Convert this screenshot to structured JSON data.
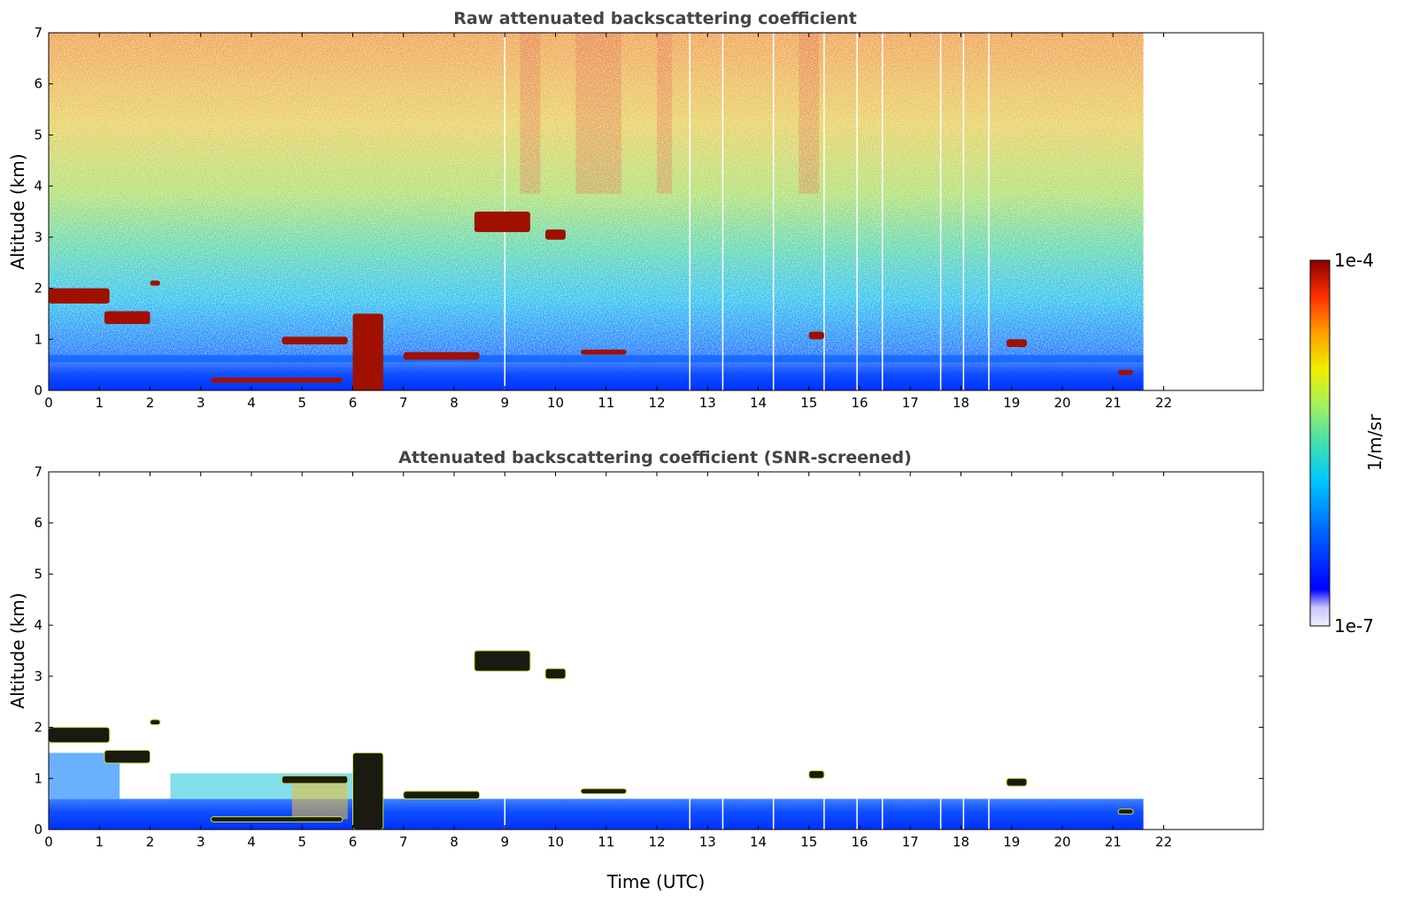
{
  "chart_data": [
    {
      "type": "heatmap",
      "title": "Raw attenuated backscattering coefficient",
      "xlabel": "",
      "ylabel": "Altitude (km)",
      "xlim": [
        0,
        24
      ],
      "ylim": [
        0,
        7
      ],
      "x_ticks": [
        "0",
        "1",
        "2",
        "3",
        "4",
        "5",
        "6",
        "7",
        "8",
        "9",
        "10",
        "11",
        "12",
        "13",
        "14",
        "15",
        "16",
        "17",
        "18",
        "19",
        "20",
        "21",
        "22"
      ],
      "y_ticks": [
        "0",
        "1",
        "2",
        "3",
        "4",
        "5",
        "6",
        "7"
      ],
      "data_extent_hours": [
        0,
        21.6
      ],
      "data_gaps_hours": [
        9.0,
        12.65,
        13.3,
        14.3,
        15.3,
        15.95,
        16.45,
        17.6,
        18.05,
        18.55
      ],
      "features": [
        {
          "name": "surface aerosol layer",
          "t": [
            0,
            21.6
          ],
          "alt_km": [
            0,
            0.5
          ],
          "level": "low"
        },
        {
          "name": "residual layer cloud",
          "t": [
            0,
            1.2
          ],
          "alt_km": [
            1.7,
            2.0
          ],
          "level": "high"
        },
        {
          "name": "cloud",
          "t": [
            2.0,
            2.2
          ],
          "alt_km": [
            2.05,
            2.15
          ],
          "level": "high"
        },
        {
          "name": "cloud",
          "t": [
            1.1,
            2.0
          ],
          "alt_km": [
            1.3,
            1.55
          ],
          "level": "high"
        },
        {
          "name": "cloud",
          "t": [
            4.6,
            5.9
          ],
          "alt_km": [
            0.9,
            1.05
          ],
          "level": "high"
        },
        {
          "name": "cloud",
          "t": [
            3.2,
            5.8
          ],
          "alt_km": [
            0.15,
            0.25
          ],
          "level": "high"
        },
        {
          "name": "cloud",
          "t": [
            6.0,
            6.6
          ],
          "alt_km": [
            0.0,
            1.5
          ],
          "level": "high"
        },
        {
          "name": "cloud",
          "t": [
            7.0,
            8.5
          ],
          "alt_km": [
            0.6,
            0.75
          ],
          "level": "high"
        },
        {
          "name": "cloud",
          "t": [
            8.4,
            9.5
          ],
          "alt_km": [
            3.1,
            3.5
          ],
          "level": "high"
        },
        {
          "name": "cloud",
          "t": [
            9.8,
            10.2
          ],
          "alt_km": [
            2.95,
            3.15
          ],
          "level": "high"
        },
        {
          "name": "cloud",
          "t": [
            10.5,
            11.4
          ],
          "alt_km": [
            0.7,
            0.8
          ],
          "level": "high"
        },
        {
          "name": "cloud",
          "t": [
            15.0,
            15.3
          ],
          "alt_km": [
            1.0,
            1.15
          ],
          "level": "high"
        },
        {
          "name": "cloud",
          "t": [
            18.9,
            19.3
          ],
          "alt_km": [
            0.85,
            1.0
          ],
          "level": "high"
        },
        {
          "name": "cloud",
          "t": [
            21.1,
            21.4
          ],
          "alt_km": [
            0.3,
            0.4
          ],
          "level": "high"
        }
      ]
    },
    {
      "type": "heatmap",
      "title": "Attenuated backscattering coefficient (SNR-screened)",
      "xlabel": "Time (UTC)",
      "ylabel": "Altitude (km)",
      "xlim": [
        0,
        24
      ],
      "ylim": [
        0,
        7
      ],
      "x_ticks": [
        "0",
        "1",
        "2",
        "3",
        "4",
        "5",
        "6",
        "7",
        "8",
        "9",
        "10",
        "11",
        "12",
        "13",
        "14",
        "15",
        "16",
        "17",
        "18",
        "19",
        "20",
        "21",
        "22"
      ],
      "y_ticks": [
        "0",
        "1",
        "2",
        "3",
        "4",
        "5",
        "6",
        "7"
      ],
      "data_extent_hours": [
        0,
        21.6
      ],
      "screened": true
    }
  ],
  "colorbar": {
    "label": "1/m/sr",
    "min_label": "1e-7",
    "max_label": "1e-4",
    "colormap": [
      "#eeeeff",
      "#d8d8f8",
      "#0000ff",
      "#0060ff",
      "#00c8ff",
      "#40e0b0",
      "#a0f060",
      "#f0f000",
      "#ffa000",
      "#ff3000",
      "#8b0000"
    ]
  }
}
